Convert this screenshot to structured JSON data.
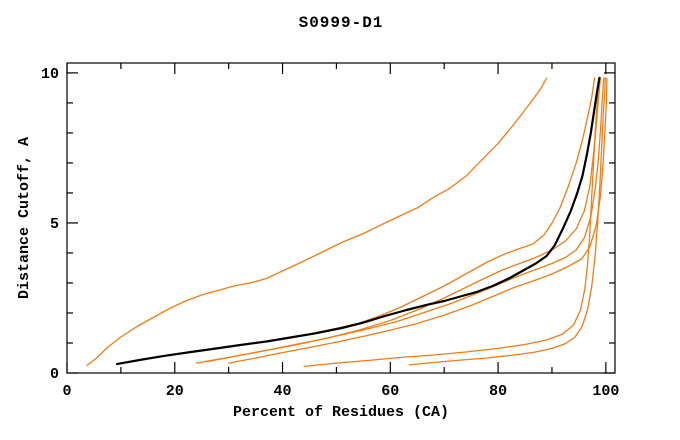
{
  "page": {
    "background": "#ffffff"
  },
  "chart_data": {
    "type": "line",
    "title": "S0999-D1",
    "xlabel": "Percent of Residues (CA)",
    "ylabel": "Distance Cutoff, A",
    "xlim": [
      0,
      101.7
    ],
    "ylim": [
      0,
      10.33
    ],
    "x_major_ticks": [
      0,
      20,
      40,
      60,
      80,
      100
    ],
    "x_minor_ticks": [
      10,
      30,
      50,
      70,
      90
    ],
    "y_major_ticks": [
      0,
      5,
      10
    ],
    "y_minor_ticks": [
      1,
      2,
      3,
      4,
      6,
      7,
      8,
      9
    ],
    "grid": false,
    "legend": "none",
    "axis_color": "#000000",
    "orange_color": "#ee7d18",
    "black_color": "#000000",
    "series": [
      {
        "name": "orange-model-1-steep",
        "color": "#ee7d18",
        "width": 1.3,
        "points": [
          [
            3.7,
            0.25
          ],
          [
            5.5,
            0.5
          ],
          [
            7.5,
            0.85
          ],
          [
            10,
            1.2
          ],
          [
            13,
            1.55
          ],
          [
            16,
            1.85
          ],
          [
            19,
            2.15
          ],
          [
            22,
            2.4
          ],
          [
            25,
            2.6
          ],
          [
            28,
            2.75
          ],
          [
            31,
            2.9
          ],
          [
            34,
            3.0
          ],
          [
            37,
            3.15
          ],
          [
            40,
            3.4
          ],
          [
            43,
            3.65
          ],
          [
            47,
            4.0
          ],
          [
            51,
            4.35
          ],
          [
            55,
            4.65
          ],
          [
            59,
            5.0
          ],
          [
            62,
            5.25
          ],
          [
            65,
            5.5
          ],
          [
            68,
            5.85
          ],
          [
            71,
            6.15
          ],
          [
            74,
            6.55
          ],
          [
            77,
            7.1
          ],
          [
            80,
            7.65
          ],
          [
            83,
            8.3
          ],
          [
            86,
            9.0
          ],
          [
            88,
            9.5
          ],
          [
            89,
            9.83
          ]
        ]
      },
      {
        "name": "orange-model-2",
        "color": "#ee7d18",
        "width": 1.3,
        "points": [
          [
            19,
            0.6
          ],
          [
            24,
            0.72
          ],
          [
            29,
            0.85
          ],
          [
            34,
            0.98
          ],
          [
            39,
            1.1
          ],
          [
            44,
            1.27
          ],
          [
            49,
            1.45
          ],
          [
            54,
            1.65
          ],
          [
            58,
            1.9
          ],
          [
            62,
            2.2
          ],
          [
            66,
            2.55
          ],
          [
            70,
            2.9
          ],
          [
            74,
            3.3
          ],
          [
            78,
            3.7
          ],
          [
            81,
            3.95
          ],
          [
            84,
            4.15
          ],
          [
            86.5,
            4.3
          ],
          [
            88.5,
            4.6
          ],
          [
            90,
            5.0
          ],
          [
            91.5,
            5.5
          ],
          [
            93,
            6.2
          ],
          [
            94.5,
            7.0
          ],
          [
            95.7,
            7.8
          ],
          [
            96.7,
            8.6
          ],
          [
            97.4,
            9.2
          ],
          [
            97.9,
            9.83
          ]
        ]
      },
      {
        "name": "orange-model-3",
        "color": "#ee7d18",
        "width": 1.3,
        "points": [
          [
            24,
            0.33
          ],
          [
            30,
            0.52
          ],
          [
            36,
            0.72
          ],
          [
            42,
            0.92
          ],
          [
            48,
            1.15
          ],
          [
            54,
            1.42
          ],
          [
            60,
            1.75
          ],
          [
            65,
            2.1
          ],
          [
            70,
            2.5
          ],
          [
            74,
            2.85
          ],
          [
            78,
            3.2
          ],
          [
            81,
            3.45
          ],
          [
            84,
            3.65
          ],
          [
            87,
            3.85
          ],
          [
            90,
            4.1
          ],
          [
            92.5,
            4.4
          ],
          [
            94.5,
            4.8
          ],
          [
            96,
            5.4
          ],
          [
            97,
            6.2
          ],
          [
            97.6,
            7.1
          ],
          [
            98.1,
            8.0
          ],
          [
            98.5,
            8.9
          ],
          [
            98.8,
            9.5
          ],
          [
            99,
            9.83
          ]
        ]
      },
      {
        "name": "orange-model-4",
        "color": "#ee7d18",
        "width": 1.3,
        "points": [
          [
            26,
            0.38
          ],
          [
            31,
            0.55
          ],
          [
            36,
            0.72
          ],
          [
            41,
            0.9
          ],
          [
            46,
            1.08
          ],
          [
            51,
            1.27
          ],
          [
            56,
            1.48
          ],
          [
            61,
            1.7
          ],
          [
            66,
            2.0
          ],
          [
            71,
            2.3
          ],
          [
            76,
            2.65
          ],
          [
            80,
            2.95
          ],
          [
            84,
            3.25
          ],
          [
            87,
            3.45
          ],
          [
            90,
            3.65
          ],
          [
            92.5,
            3.85
          ],
          [
            94.5,
            4.1
          ],
          [
            96,
            4.5
          ],
          [
            97.2,
            5.2
          ],
          [
            98,
            6.1
          ],
          [
            98.6,
            7.1
          ],
          [
            99,
            8.1
          ],
          [
            99.3,
            9.0
          ],
          [
            99.6,
            9.83
          ]
        ]
      },
      {
        "name": "orange-model-5",
        "color": "#ee7d18",
        "width": 1.3,
        "points": [
          [
            30,
            0.33
          ],
          [
            35,
            0.5
          ],
          [
            40,
            0.68
          ],
          [
            45,
            0.85
          ],
          [
            50,
            1.03
          ],
          [
            55,
            1.22
          ],
          [
            60,
            1.43
          ],
          [
            65,
            1.65
          ],
          [
            70,
            1.93
          ],
          [
            75,
            2.25
          ],
          [
            79,
            2.55
          ],
          [
            83,
            2.85
          ],
          [
            87,
            3.1
          ],
          [
            90,
            3.3
          ],
          [
            93,
            3.55
          ],
          [
            95.5,
            3.8
          ],
          [
            97,
            4.2
          ],
          [
            98.2,
            4.9
          ],
          [
            99,
            5.9
          ],
          [
            99.5,
            7.0
          ],
          [
            99.8,
            8.0
          ],
          [
            100.1,
            9.0
          ],
          [
            100.2,
            9.83
          ]
        ]
      },
      {
        "name": "orange-model-6-flat",
        "color": "#ee7d18",
        "width": 1.3,
        "points": [
          [
            44,
            0.22
          ],
          [
            50,
            0.33
          ],
          [
            56,
            0.42
          ],
          [
            62,
            0.52
          ],
          [
            68,
            0.6
          ],
          [
            74,
            0.7
          ],
          [
            80,
            0.82
          ],
          [
            85,
            0.95
          ],
          [
            89,
            1.1
          ],
          [
            92,
            1.3
          ],
          [
            94,
            1.6
          ],
          [
            95.3,
            2.1
          ],
          [
            96.1,
            2.8
          ],
          [
            96.6,
            3.6
          ],
          [
            97,
            4.6
          ],
          [
            97.3,
            5.6
          ],
          [
            97.6,
            6.6
          ],
          [
            97.9,
            7.6
          ],
          [
            98.2,
            8.5
          ],
          [
            98.5,
            9.3
          ],
          [
            98.7,
            9.83
          ]
        ]
      },
      {
        "name": "orange-model-7-flat",
        "color": "#ee7d18",
        "width": 1.3,
        "points": [
          [
            63.5,
            0.27
          ],
          [
            68,
            0.35
          ],
          [
            73,
            0.43
          ],
          [
            78,
            0.5
          ],
          [
            83,
            0.6
          ],
          [
            87,
            0.7
          ],
          [
            90,
            0.82
          ],
          [
            92.5,
            0.98
          ],
          [
            94.3,
            1.2
          ],
          [
            95.6,
            1.55
          ],
          [
            96.6,
            2.1
          ],
          [
            97.4,
            2.9
          ],
          [
            98,
            3.9
          ],
          [
            98.5,
            5.1
          ],
          [
            98.9,
            6.3
          ],
          [
            99.2,
            7.4
          ],
          [
            99.5,
            8.5
          ],
          [
            99.8,
            9.4
          ],
          [
            99.9,
            9.83
          ]
        ]
      },
      {
        "name": "black-main-model",
        "color": "#000000",
        "width": 2.2,
        "points": [
          [
            9.3,
            0.3
          ],
          [
            14,
            0.45
          ],
          [
            18,
            0.57
          ],
          [
            23,
            0.7
          ],
          [
            27,
            0.8
          ],
          [
            32,
            0.93
          ],
          [
            37,
            1.05
          ],
          [
            42,
            1.2
          ],
          [
            46,
            1.32
          ],
          [
            51,
            1.5
          ],
          [
            55,
            1.68
          ],
          [
            59,
            1.9
          ],
          [
            63,
            2.1
          ],
          [
            67,
            2.28
          ],
          [
            70,
            2.4
          ],
          [
            73,
            2.55
          ],
          [
            76,
            2.7
          ],
          [
            79,
            2.9
          ],
          [
            82,
            3.15
          ],
          [
            85,
            3.45
          ],
          [
            87,
            3.65
          ],
          [
            89,
            3.9
          ],
          [
            90.5,
            4.25
          ],
          [
            92,
            4.8
          ],
          [
            93.5,
            5.4
          ],
          [
            94.7,
            6.0
          ],
          [
            95.7,
            6.6
          ],
          [
            96.5,
            7.3
          ],
          [
            97.2,
            8.0
          ],
          [
            97.8,
            8.7
          ],
          [
            98.3,
            9.3
          ],
          [
            98.8,
            9.83
          ]
        ]
      }
    ]
  }
}
